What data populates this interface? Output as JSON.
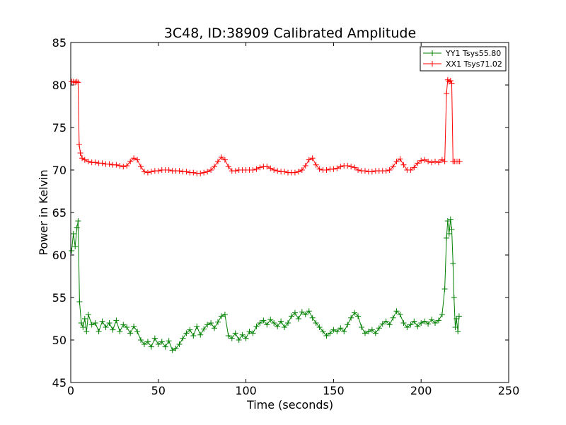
{
  "chart_data": {
    "type": "line",
    "title": "3C48, ID:38909 Calibrated Amplitude",
    "xlabel": "Time (seconds)",
    "ylabel": "Power in Kelvin",
    "xlim": [
      0,
      250
    ],
    "ylim": [
      45,
      85
    ],
    "xticks": [
      0,
      50,
      100,
      150,
      200,
      250
    ],
    "yticks": [
      45,
      50,
      55,
      60,
      65,
      70,
      75,
      80,
      85
    ],
    "grid": false,
    "legend_position": "top-right",
    "marker": "plus",
    "series": [
      {
        "name": "YY1 Tsys55.80",
        "color": "#008000",
        "points": [
          [
            0.5,
            60.5
          ],
          [
            1.5,
            62.5
          ],
          [
            2.5,
            61.0
          ],
          [
            3.5,
            63.2
          ],
          [
            4.2,
            64.0
          ],
          [
            5.0,
            54.5
          ],
          [
            6,
            52.0
          ],
          [
            7,
            51.5
          ],
          [
            8,
            52.5
          ],
          [
            9,
            51.0
          ],
          [
            10,
            53.0
          ],
          [
            12,
            51.8
          ],
          [
            14,
            52.0
          ],
          [
            16,
            51.0
          ],
          [
            18,
            52.2
          ],
          [
            20,
            51.5
          ],
          [
            22,
            52.0
          ],
          [
            24,
            51.2
          ],
          [
            26,
            52.3
          ],
          [
            28,
            51.0
          ],
          [
            30,
            51.8
          ],
          [
            32,
            51.5
          ],
          [
            34,
            50.8
          ],
          [
            36,
            51.6
          ],
          [
            38,
            51.0
          ],
          [
            40,
            50.0
          ],
          [
            42,
            49.5
          ],
          [
            44,
            49.8
          ],
          [
            46,
            49.2
          ],
          [
            48,
            50.2
          ],
          [
            50,
            49.5
          ],
          [
            52,
            49.8
          ],
          [
            54,
            49.2
          ],
          [
            56,
            49.9
          ],
          [
            58,
            48.8
          ],
          [
            60,
            49.0
          ],
          [
            62,
            49.5
          ],
          [
            64,
            50.2
          ],
          [
            66,
            50.8
          ],
          [
            68,
            51.2
          ],
          [
            70,
            50.5
          ],
          [
            72,
            51.6
          ],
          [
            74,
            50.6
          ],
          [
            76,
            51.3
          ],
          [
            78,
            51.8
          ],
          [
            80,
            52.0
          ],
          [
            82,
            51.4
          ],
          [
            84,
            52.1
          ],
          [
            86,
            52.8
          ],
          [
            88,
            53.0
          ],
          [
            90,
            50.5
          ],
          [
            92,
            50.2
          ],
          [
            94,
            50.8
          ],
          [
            96,
            50.0
          ],
          [
            98,
            50.6
          ],
          [
            100,
            50.2
          ],
          [
            102,
            51.0
          ],
          [
            104,
            50.8
          ],
          [
            106,
            51.6
          ],
          [
            108,
            52.0
          ],
          [
            110,
            52.3
          ],
          [
            112,
            51.8
          ],
          [
            114,
            52.4
          ],
          [
            116,
            52.0
          ],
          [
            118,
            51.6
          ],
          [
            120,
            52.2
          ],
          [
            122,
            51.5
          ],
          [
            124,
            52.0
          ],
          [
            126,
            52.8
          ],
          [
            128,
            53.2
          ],
          [
            130,
            52.5
          ],
          [
            132,
            53.3
          ],
          [
            134,
            53.0
          ],
          [
            136,
            53.4
          ],
          [
            138,
            52.6
          ],
          [
            140,
            52.0
          ],
          [
            142,
            51.5
          ],
          [
            144,
            51.0
          ],
          [
            146,
            50.5
          ],
          [
            148,
            50.8
          ],
          [
            150,
            51.2
          ],
          [
            152,
            51.0
          ],
          [
            154,
            51.4
          ],
          [
            156,
            51.0
          ],
          [
            158,
            51.8
          ],
          [
            160,
            52.6
          ],
          [
            162,
            53.2
          ],
          [
            164,
            52.8
          ],
          [
            166,
            51.5
          ],
          [
            168,
            50.8
          ],
          [
            170,
            51.0
          ],
          [
            172,
            51.2
          ],
          [
            174,
            50.8
          ],
          [
            176,
            51.4
          ],
          [
            178,
            51.9
          ],
          [
            180,
            52.2
          ],
          [
            182,
            51.8
          ],
          [
            184,
            52.6
          ],
          [
            186,
            53.4
          ],
          [
            188,
            53.0
          ],
          [
            190,
            52.0
          ],
          [
            192,
            51.5
          ],
          [
            194,
            51.8
          ],
          [
            196,
            52.2
          ],
          [
            198,
            51.6
          ],
          [
            200,
            52.0
          ],
          [
            202,
            52.2
          ],
          [
            204,
            51.9
          ],
          [
            206,
            52.4
          ],
          [
            208,
            52.0
          ],
          [
            210,
            52.3
          ],
          [
            212,
            53.0
          ],
          [
            213.5,
            56.0
          ],
          [
            214.5,
            62.0
          ],
          [
            215.2,
            64.0
          ],
          [
            216,
            62.5
          ],
          [
            216.8,
            64.2
          ],
          [
            217.5,
            63.0
          ],
          [
            218.2,
            59.0
          ],
          [
            218.8,
            55.0
          ],
          [
            219.5,
            51.5
          ],
          [
            220.2,
            52.5
          ],
          [
            221,
            51.0
          ],
          [
            221.7,
            52.8
          ]
        ]
      },
      {
        "name": "XX1 Tsys71.02",
        "color": "#ff0000",
        "points": [
          [
            0.5,
            80.4
          ],
          [
            1.5,
            80.4
          ],
          [
            2.5,
            80.3
          ],
          [
            3.5,
            80.4
          ],
          [
            4.2,
            80.3
          ],
          [
            4.8,
            73.0
          ],
          [
            5.5,
            72.0
          ],
          [
            6.5,
            71.4
          ],
          [
            8,
            71.2
          ],
          [
            10,
            71.0
          ],
          [
            12,
            70.9
          ],
          [
            14,
            70.9
          ],
          [
            16,
            70.8
          ],
          [
            18,
            70.8
          ],
          [
            20,
            70.7
          ],
          [
            22,
            70.7
          ],
          [
            24,
            70.6
          ],
          [
            26,
            70.6
          ],
          [
            28,
            70.5
          ],
          [
            30,
            70.4
          ],
          [
            32,
            70.5
          ],
          [
            34,
            71.0
          ],
          [
            36,
            71.4
          ],
          [
            38,
            71.2
          ],
          [
            40,
            70.4
          ],
          [
            42,
            69.8
          ],
          [
            44,
            69.7
          ],
          [
            46,
            69.8
          ],
          [
            48,
            69.9
          ],
          [
            50,
            69.9
          ],
          [
            52,
            70.0
          ],
          [
            54,
            70.0
          ],
          [
            56,
            70.0
          ],
          [
            58,
            69.9
          ],
          [
            60,
            69.9
          ],
          [
            62,
            69.9
          ],
          [
            64,
            69.8
          ],
          [
            66,
            69.8
          ],
          [
            68,
            69.7
          ],
          [
            70,
            69.7
          ],
          [
            72,
            69.6
          ],
          [
            74,
            69.6
          ],
          [
            76,
            69.7
          ],
          [
            78,
            69.8
          ],
          [
            80,
            70.0
          ],
          [
            82,
            70.4
          ],
          [
            84,
            71.0
          ],
          [
            86,
            71.5
          ],
          [
            88,
            71.2
          ],
          [
            90,
            70.4
          ],
          [
            92,
            69.9
          ],
          [
            94,
            69.9
          ],
          [
            96,
            70.0
          ],
          [
            98,
            70.0
          ],
          [
            100,
            70.0
          ],
          [
            102,
            70.0
          ],
          [
            104,
            70.0
          ],
          [
            106,
            70.1
          ],
          [
            108,
            70.3
          ],
          [
            110,
            70.4
          ],
          [
            112,
            70.4
          ],
          [
            114,
            70.2
          ],
          [
            116,
            70.0
          ],
          [
            118,
            69.9
          ],
          [
            120,
            69.8
          ],
          [
            122,
            69.8
          ],
          [
            124,
            69.7
          ],
          [
            126,
            69.7
          ],
          [
            128,
            69.7
          ],
          [
            130,
            69.8
          ],
          [
            132,
            70.0
          ],
          [
            134,
            70.5
          ],
          [
            136,
            71.2
          ],
          [
            138,
            71.4
          ],
          [
            140,
            70.6
          ],
          [
            142,
            70.1
          ],
          [
            144,
            70.0
          ],
          [
            146,
            70.0
          ],
          [
            148,
            70.1
          ],
          [
            150,
            70.1
          ],
          [
            152,
            70.2
          ],
          [
            154,
            70.4
          ],
          [
            156,
            70.5
          ],
          [
            158,
            70.5
          ],
          [
            160,
            70.4
          ],
          [
            162,
            70.3
          ],
          [
            164,
            70.0
          ],
          [
            166,
            69.9
          ],
          [
            168,
            69.9
          ],
          [
            170,
            69.8
          ],
          [
            172,
            69.8
          ],
          [
            174,
            69.9
          ],
          [
            176,
            69.9
          ],
          [
            178,
            69.9
          ],
          [
            180,
            69.9
          ],
          [
            182,
            70.0
          ],
          [
            184,
            70.4
          ],
          [
            186,
            71.0
          ],
          [
            188,
            71.3
          ],
          [
            190,
            70.6
          ],
          [
            192,
            70.0
          ],
          [
            194,
            70.0
          ],
          [
            196,
            70.3
          ],
          [
            198,
            70.8
          ],
          [
            200,
            71.1
          ],
          [
            202,
            71.2
          ],
          [
            204,
            71.0
          ],
          [
            206,
            70.9
          ],
          [
            208,
            71.0
          ],
          [
            210,
            70.9
          ],
          [
            212,
            71.2
          ],
          [
            213.5,
            71.0
          ],
          [
            214.5,
            79.0
          ],
          [
            215.2,
            80.6
          ],
          [
            216,
            80.4
          ],
          [
            216.8,
            80.5
          ],
          [
            217.5,
            80.2
          ],
          [
            218.2,
            71.0
          ],
          [
            219,
            71.0
          ],
          [
            220,
            71.0
          ],
          [
            221,
            71.0
          ],
          [
            222,
            71.0
          ]
        ]
      }
    ]
  }
}
